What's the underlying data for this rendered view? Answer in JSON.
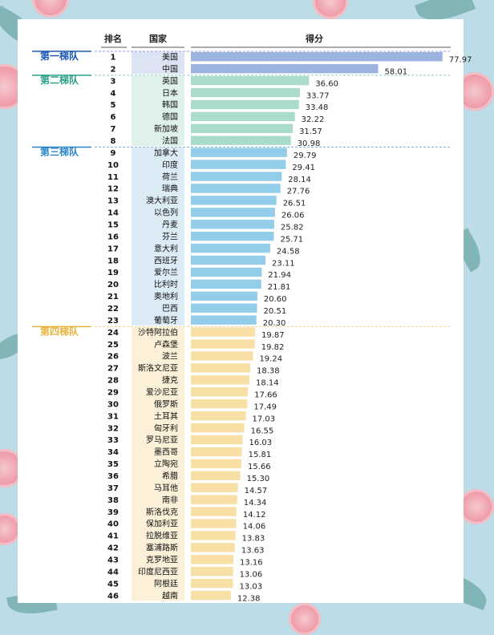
{
  "chart_data": {
    "type": "bar",
    "orientation": "horizontal",
    "headers": {
      "rank": "排名",
      "country": "国家",
      "score": "得分"
    },
    "tiers": [
      {
        "name": "第一梯队",
        "color": "#1a56b6",
        "bar_color": "#9cb3df",
        "cell_color": "#dce4f4",
        "start_rank": 1,
        "end_rank": 2
      },
      {
        "name": "第二梯队",
        "color": "#2ba088",
        "bar_color": "#a9dccb",
        "cell_color": "#dff2ea",
        "start_rank": 3,
        "end_rank": 8
      },
      {
        "name": "第三梯队",
        "color": "#2a86c8",
        "bar_color": "#94cdea",
        "cell_color": "#dcecf7",
        "start_rank": 9,
        "end_rank": 23
      },
      {
        "name": "第四梯队",
        "color": "#e6b43c",
        "bar_color": "#f8dfa6",
        "cell_color": "#fcf0d8",
        "start_rank": 24,
        "end_rank": 46
      }
    ],
    "categories": [
      "美国",
      "中国",
      "英国",
      "日本",
      "韩国",
      "德国",
      "新加坡",
      "法国",
      "加拿大",
      "印度",
      "荷兰",
      "瑞典",
      "澳大利亚",
      "以色列",
      "丹麦",
      "芬兰",
      "意大利",
      "西班牙",
      "爱尔兰",
      "比利时",
      "奥地利",
      "巴西",
      "葡萄牙",
      "沙特阿拉伯",
      "卢森堡",
      "波兰",
      "斯洛文尼亚",
      "捷克",
      "爱沙尼亚",
      "俄罗斯",
      "土耳其",
      "匈牙利",
      "罗马尼亚",
      "墨西哥",
      "立陶宛",
      "希腊",
      "马耳他",
      "南非",
      "斯洛伐克",
      "保加利亚",
      "拉脱维亚",
      "塞浦路斯",
      "克罗地亚",
      "印度尼西亚",
      "阿根廷",
      "越南"
    ],
    "ranks": [
      "1",
      "2",
      "3",
      "4",
      "5",
      "6",
      "7",
      "8",
      "9",
      "10",
      "11",
      "12",
      "13",
      "14",
      "15",
      "16",
      "17",
      "18",
      "19",
      "20",
      "21",
      "22",
      "23",
      "24",
      "25",
      "26",
      "27",
      "28",
      "29",
      "30",
      "31",
      "32",
      "33",
      "34",
      "35",
      "36",
      "37",
      "38",
      "39",
      "40",
      "41",
      "42",
      "43",
      "44",
      "45",
      "46"
    ],
    "values": [
      77.97,
      58.01,
      36.6,
      33.77,
      33.48,
      32.22,
      31.57,
      30.98,
      29.79,
      29.41,
      28.14,
      27.76,
      26.51,
      26.06,
      25.82,
      25.71,
      24.58,
      23.11,
      21.94,
      21.81,
      20.6,
      20.51,
      20.3,
      19.87,
      19.82,
      19.24,
      18.38,
      18.14,
      17.66,
      17.49,
      17.03,
      16.55,
      16.03,
      15.81,
      15.66,
      15.3,
      14.57,
      14.34,
      14.12,
      14.06,
      13.83,
      13.63,
      13.16,
      13.06,
      13.03,
      12.38
    ],
    "value_labels": [
      "77.97",
      "58.01",
      "36.60",
      "33.77",
      "33.48",
      "32.22",
      "31.57",
      "30.98",
      "29.79",
      "29.41",
      "28.14",
      "27.76",
      "26.51",
      "26.06",
      "25.82",
      "25.71",
      "24.58",
      "23.11",
      "21.94",
      "21.81",
      "20.60",
      "20.51",
      "20.30",
      "19.87",
      "19.82",
      "19.24",
      "18.38",
      "18.14",
      "17.66",
      "17.49",
      "17.03",
      "16.55",
      "16.03",
      "15.81",
      "15.66",
      "15.30",
      "14.57",
      "14.34",
      "14.12",
      "14.06",
      "13.83",
      "13.63",
      "13.16",
      "13.06",
      "13.03",
      "12.38"
    ],
    "xlim": [
      0,
      80
    ],
    "grid": false,
    "legend": "none"
  }
}
